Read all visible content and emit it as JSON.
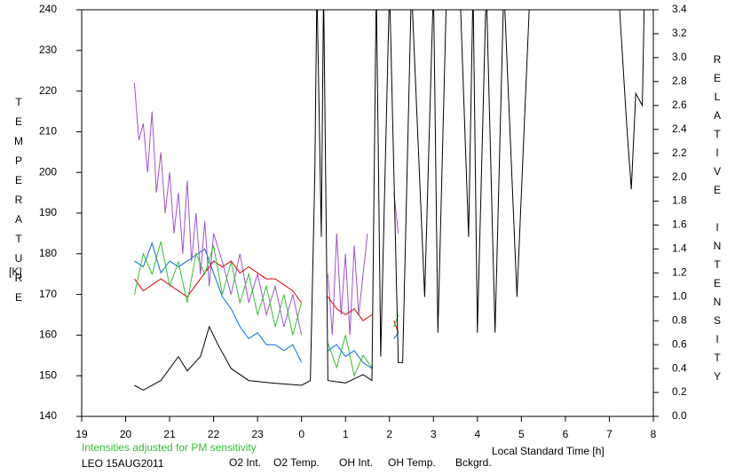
{
  "chart_data": {
    "type": "line",
    "ylabel": "TEMPERATURE",
    "yunit": "[K]",
    "y2label": "RELATIVE INTENSITY",
    "xlabel": "Local Standard Time [h]",
    "note": "Intensities adjusted for PM sensitivity",
    "station": "LEO 15AUG2011",
    "xlim": [
      19,
      32
    ],
    "xticks": [
      19,
      20,
      21,
      22,
      23,
      {
        "value": 24,
        "label": "0"
      },
      {
        "value": 25,
        "label": "1"
      },
      {
        "value": 26,
        "label": "2"
      },
      {
        "value": 27,
        "label": "3"
      },
      {
        "value": 28,
        "label": "4"
      },
      {
        "value": 29,
        "label": "5"
      },
      {
        "value": 30,
        "label": "6"
      },
      {
        "value": 31,
        "label": "7"
      },
      {
        "value": 32,
        "label": "8"
      }
    ],
    "ylim": [
      140,
      240
    ],
    "yticks": [
      140,
      150,
      160,
      170,
      180,
      190,
      200,
      210,
      220,
      230,
      240
    ],
    "y2lim": [
      0,
      3.4
    ],
    "y2ticks": [
      {
        "value": 0,
        "label": "0.0"
      },
      0.2,
      0.4,
      0.6,
      0.8,
      {
        "value": 1,
        "label": "1.0"
      },
      1.2,
      1.4,
      1.6,
      1.8,
      {
        "value": 2,
        "label": "2.0"
      },
      2.2,
      2.4,
      2.6,
      2.8,
      {
        "value": 3,
        "label": "3.0"
      },
      3.2,
      3.4
    ],
    "series": [
      {
        "name": "O2 Int.",
        "color": "#0070e0",
        "axis": "y2",
        "x": [
          20.2,
          20.4,
          20.6,
          20.8,
          21.0,
          21.2,
          21.4,
          21.6,
          21.8,
          22.0,
          22.2,
          22.4,
          22.6,
          22.8,
          23.0,
          23.2,
          23.4,
          23.6,
          23.8,
          24.0,
          24.3,
          24.6,
          24.8,
          25.0,
          25.2,
          25.4,
          25.6,
          25.8,
          26.1,
          26.2
        ],
        "values": [
          1.3,
          1.25,
          1.45,
          1.2,
          1.3,
          1.25,
          1.3,
          1.35,
          1.4,
          1.2,
          1.0,
          0.9,
          0.75,
          0.65,
          0.7,
          0.6,
          0.6,
          0.55,
          0.6,
          0.45,
          null,
          0.55,
          0.6,
          0.5,
          0.55,
          0.45,
          0.4,
          null,
          0.65,
          0.7
        ]
      },
      {
        "name": "O2 Temp.",
        "color": "#a050d0",
        "axis": "y",
        "x": [
          20.2,
          20.3,
          20.4,
          20.5,
          20.6,
          20.7,
          20.8,
          20.9,
          21.0,
          21.1,
          21.2,
          21.3,
          21.4,
          21.5,
          21.6,
          21.7,
          21.8,
          21.9,
          22.0,
          22.2,
          22.4,
          22.6,
          22.8,
          23.0,
          23.2,
          23.4,
          23.6,
          23.8,
          24.0,
          24.3,
          24.6,
          24.7,
          24.8,
          24.9,
          25.0,
          25.1,
          25.2,
          25.3,
          25.4,
          25.5,
          25.8,
          26.1,
          26.2
        ],
        "values": [
          222,
          208,
          212,
          200,
          215,
          195,
          205,
          190,
          200,
          185,
          195,
          180,
          198,
          178,
          190,
          175,
          188,
          172,
          185,
          178,
          170,
          180,
          168,
          175,
          165,
          172,
          162,
          170,
          160,
          null,
          175,
          160,
          185,
          165,
          180,
          160,
          182,
          165,
          175,
          185,
          null,
          195,
          185
        ]
      },
      {
        "name": "OH Int.",
        "color": "#e00000",
        "axis": "y2",
        "x": [
          20.2,
          20.4,
          20.6,
          20.8,
          21.0,
          21.2,
          21.4,
          21.6,
          21.8,
          22.0,
          22.2,
          22.4,
          22.6,
          22.8,
          23.0,
          23.2,
          23.4,
          23.6,
          23.8,
          24.0,
          24.3,
          24.6,
          24.8,
          25.0,
          25.2,
          25.4,
          25.6,
          25.8,
          26.1,
          26.2
        ],
        "values": [
          1.15,
          1.05,
          1.1,
          1.15,
          1.1,
          1.05,
          1.0,
          1.1,
          1.2,
          1.3,
          1.25,
          1.3,
          1.2,
          1.25,
          1.2,
          1.15,
          1.15,
          1.1,
          1.05,
          0.95,
          null,
          1.0,
          0.9,
          0.85,
          0.9,
          0.8,
          0.85,
          null,
          0.8,
          0.7
        ]
      },
      {
        "name": "OH Temp.",
        "color": "#30c030",
        "axis": "y",
        "x": [
          20.2,
          20.4,
          20.6,
          20.8,
          21.0,
          21.2,
          21.4,
          21.6,
          21.8,
          22.0,
          22.2,
          22.4,
          22.6,
          22.8,
          23.0,
          23.2,
          23.4,
          23.6,
          23.8,
          24.0,
          24.3,
          24.6,
          24.8,
          25.0,
          25.2,
          25.4,
          25.6,
          25.8,
          26.1,
          26.2
        ],
        "values": [
          170,
          180,
          175,
          183,
          172,
          178,
          168,
          180,
          175,
          182,
          170,
          178,
          168,
          175,
          165,
          172,
          162,
          170,
          160,
          168,
          null,
          158,
          152,
          160,
          150,
          155,
          152,
          null,
          162,
          165
        ]
      },
      {
        "name": "Bckgrd.",
        "color": "#000000",
        "axis": "y2",
        "x": [
          20.2,
          20.4,
          20.8,
          21.2,
          21.4,
          21.7,
          21.9,
          22.1,
          22.4,
          22.8,
          23.3,
          24.0,
          24.2,
          24.3,
          24.35,
          24.45,
          24.5,
          24.6,
          25.0,
          25.4,
          25.6,
          25.7,
          25.8,
          26.0,
          26.2,
          26.3,
          26.5,
          26.8,
          27.0,
          27.1,
          27.3,
          27.6,
          27.8,
          27.9,
          28.0,
          28.2,
          28.4,
          28.6,
          28.9,
          29.2,
          31.2,
          31.4,
          31.5,
          31.6,
          31.75,
          31.8
        ],
        "values": [
          0.26,
          0.22,
          0.3,
          0.5,
          0.38,
          0.5,
          0.75,
          0.6,
          0.4,
          0.3,
          0.28,
          0.26,
          0.3,
          2.0,
          3.6,
          1.5,
          3.6,
          0.3,
          0.28,
          0.35,
          0.3,
          3.6,
          0.5,
          3.6,
          0.45,
          0.45,
          3.6,
          1.0,
          3.6,
          0.7,
          3.6,
          3.6,
          1.5,
          3.6,
          0.7,
          3.6,
          0.7,
          3.6,
          1.0,
          3.6,
          3.6,
          2.4,
          1.9,
          2.7,
          2.6,
          3.6
        ]
      }
    ]
  }
}
